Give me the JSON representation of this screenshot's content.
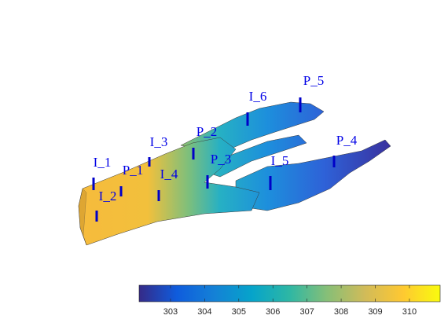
{
  "chart_data": {
    "type": "reservoir",
    "wells": [
      "I_1",
      "I_2",
      "P_1",
      "I_3",
      "I_4",
      "P_2",
      "P_3",
      "I_5",
      "I_6",
      "P_5",
      "P_4"
    ],
    "clim": [
      302.08,
      310.9
    ],
    "cticks": [
      303,
      304,
      305,
      306,
      307,
      308,
      309,
      310
    ]
  }
}
